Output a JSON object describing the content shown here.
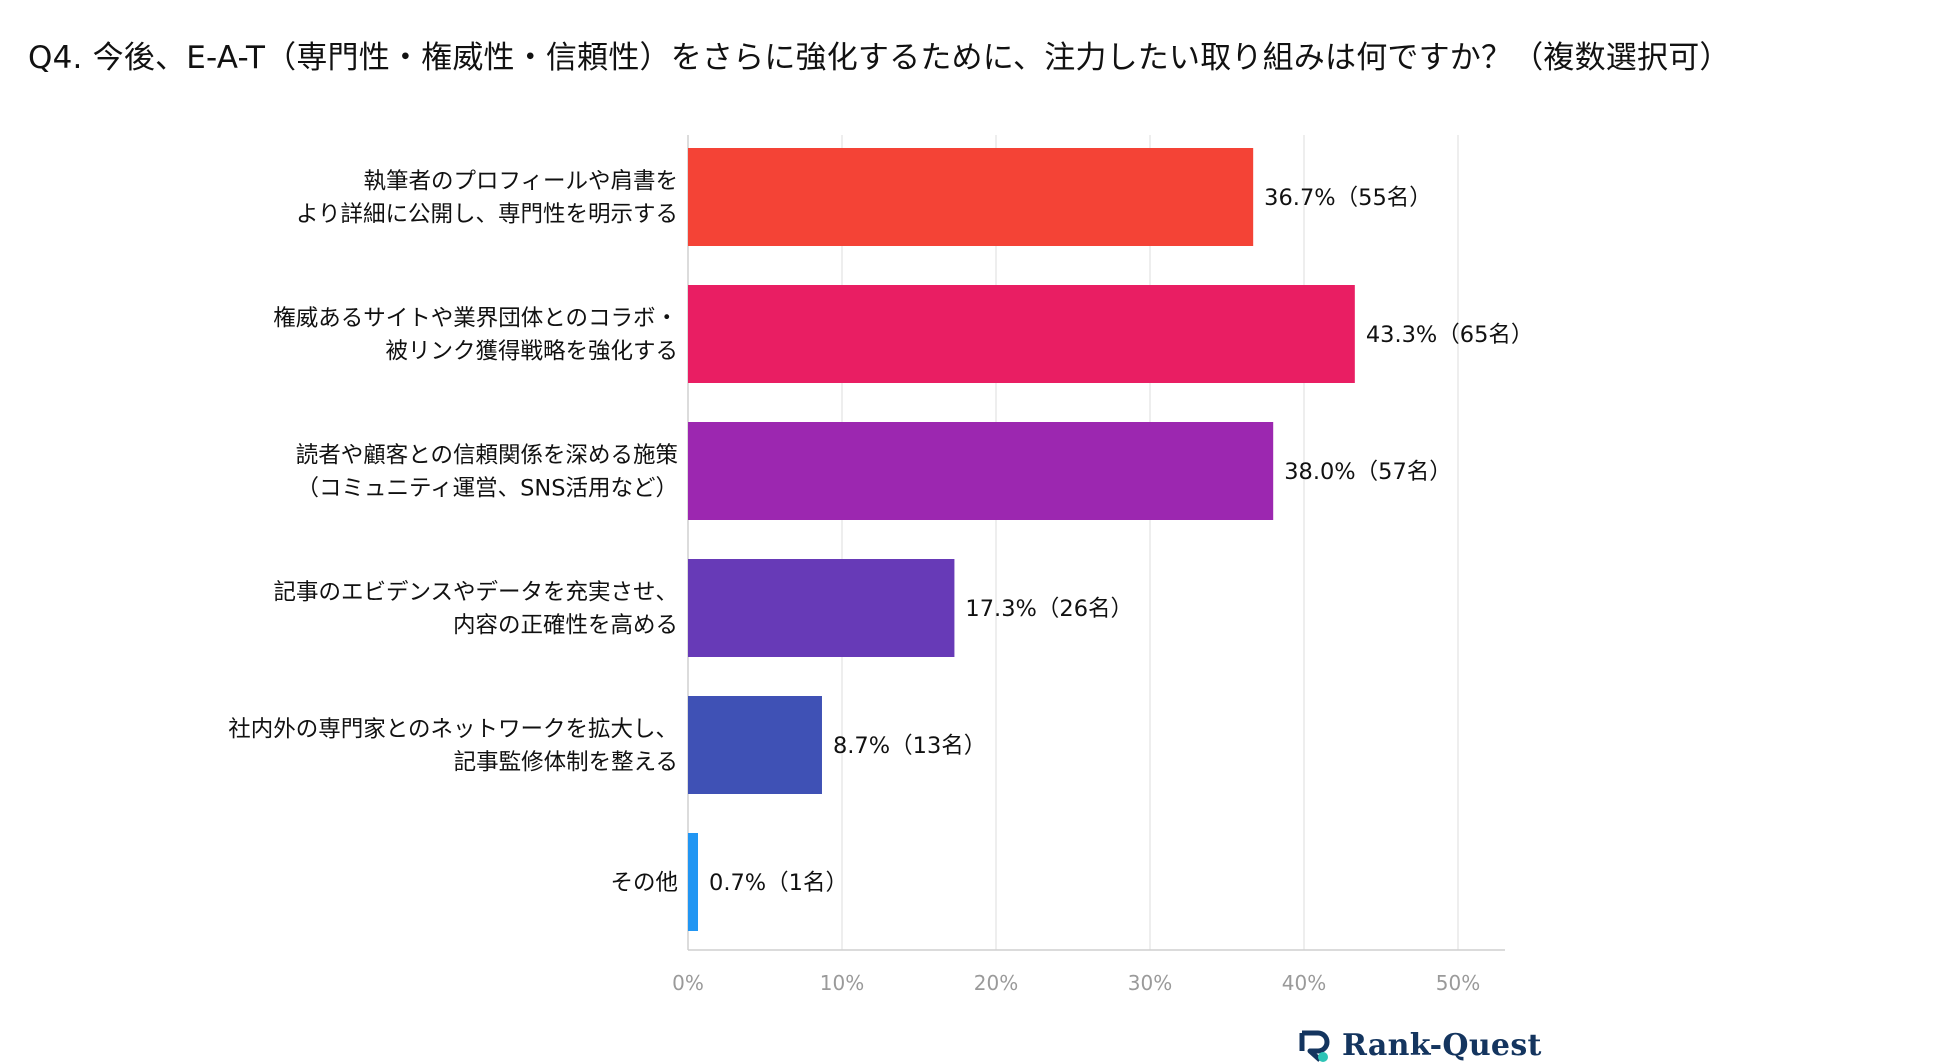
{
  "title": "Q4. 今後、E-A-T（専門性・権威性・信頼性）をさらに強化するために、注力したい取り組みは何ですか？（複数選択可）",
  "brand": {
    "name": "Rank-Quest"
  },
  "chart_data": {
    "type": "bar",
    "orientation": "horizontal",
    "title": "Q4. 今後、E-A-T（専門性・権威性・信頼性）をさらに強化するために、注力したい取り組みは何ですか？（複数選択可）",
    "xlim": [
      0,
      53
    ],
    "grid": true,
    "categories": [
      [
        "執筆者のプロフィールや肩書を",
        "より詳細に公開し、専門性を明示する"
      ],
      [
        "権威あるサイトや業界団体とのコラボ・",
        "被リンク獲得戦略を強化する"
      ],
      [
        "読者や顧客との信頼関係を深める施策",
        "（コミュニティ運営、SNS活用など）"
      ],
      [
        "記事のエビデンスやデータを充実させ、",
        "内容の正確性を高める"
      ],
      [
        "社内外の専門家とのネットワークを拡大し、",
        "記事監修体制を整える"
      ],
      [
        "その他"
      ]
    ],
    "values": [
      36.7,
      43.3,
      38.0,
      17.3,
      8.7,
      0.7
    ],
    "value_labels": [
      "36.7%（55名）",
      "43.3%（65名）",
      "38.0%（57名）",
      "17.3%（26名）",
      "8.7%（13名）",
      "0.7%（1名）"
    ],
    "colors": [
      "#f44336",
      "#e91e63",
      "#9c27b0",
      "#673ab7",
      "#3f51b5",
      "#2196f3"
    ],
    "ticks": [
      0,
      10,
      20,
      30,
      40,
      50
    ],
    "tick_labels": [
      "0%",
      "10%",
      "20%",
      "30%",
      "40%",
      "50%"
    ]
  }
}
